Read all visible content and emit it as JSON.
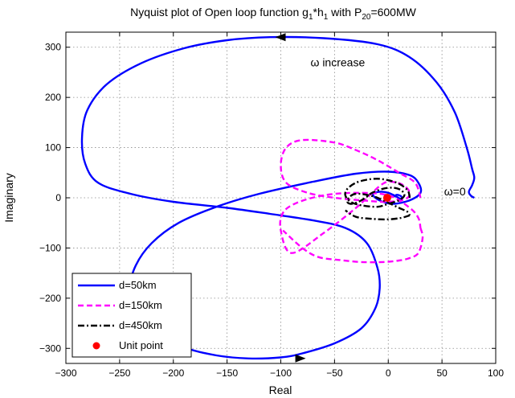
{
  "chart_data": {
    "type": "line",
    "title_main": "Nyquist plot of Open loop function g",
    "title_sub1": "1",
    "title_mid": "*h",
    "title_sub2": "1",
    "title_with": " with P",
    "title_sub3": "20",
    "title_end": "=600MW",
    "xlabel": "Real",
    "ylabel": "Imaginary",
    "xlim": [
      -300,
      100
    ],
    "ylim": [
      -330,
      330
    ],
    "xticks": [
      -300,
      -250,
      -200,
      -150,
      -100,
      -50,
      0,
      50,
      100
    ],
    "yticks": [
      -300,
      -200,
      -100,
      0,
      100,
      200,
      300
    ],
    "grid": true,
    "legend_position": "bottom-left",
    "annotations": [
      {
        "text": "ω increase",
        "x": -47,
        "y": 262
      },
      {
        "text": "ω=0",
        "x": 62,
        "y": 5
      }
    ],
    "series": [
      {
        "name": "d=50km",
        "color": "#0000ff",
        "style": "solid",
        "arrows": true,
        "x": [
          80,
          77,
          75,
          78,
          80,
          78,
          73,
          62,
          45,
          20,
          -10,
          -60,
          -110,
          -150,
          -190,
          -230,
          -262,
          -280,
          -285,
          -282,
          -270,
          -240,
          -200,
          -150,
          -110,
          -70,
          -40,
          -20,
          -10,
          -8,
          -12,
          -25,
          -50,
          -80,
          -100,
          -130,
          -160,
          -190,
          -215,
          -232,
          -240,
          -235,
          -220,
          -195,
          -160,
          -120,
          -70,
          -30,
          0,
          20,
          28,
          30,
          20,
          5,
          -5,
          -12,
          -14,
          -8,
          0,
          8,
          12,
          12,
          8,
          5
        ],
        "y": [
          0,
          4,
          12,
          25,
          40,
          58,
          100,
          170,
          230,
          280,
          306,
          318,
          320,
          314,
          298,
          268,
          226,
          175,
          120,
          68,
          30,
          8,
          -8,
          -20,
          -32,
          -45,
          -60,
          -90,
          -140,
          -180,
          -220,
          -260,
          -290,
          -310,
          -318,
          -320,
          -314,
          -298,
          -270,
          -230,
          -180,
          -135,
          -90,
          -50,
          -18,
          8,
          32,
          48,
          52,
          45,
          30,
          10,
          -5,
          -12,
          -8,
          0,
          8,
          12,
          10,
          2,
          -3,
          3,
          6,
          2
        ]
      },
      {
        "name": "d=150km",
        "color": "#ff00ff",
        "style": "dashed",
        "x": [
          30,
          25,
          10,
          -10,
          -30,
          -50,
          -80,
          -95,
          -100,
          -95,
          -75,
          -50,
          -25,
          -5,
          10,
          18,
          20,
          16,
          8,
          -5,
          -30,
          -60,
          -90,
          -100,
          -98,
          -85,
          -60,
          -30,
          0,
          20,
          28,
          30
        ],
        "y": [
          0,
          30,
          50,
          75,
          95,
          110,
          115,
          100,
          65,
          30,
          10,
          0,
          -5,
          -8,
          -6,
          0,
          10,
          22,
          30,
          28,
          -20,
          -70,
          -110,
          -65,
          -30,
          -10,
          5,
          10,
          5,
          -20,
          -40,
          -60
        ],
        "x2": [
          30,
          32,
          28,
          20,
          10,
          -5,
          -25,
          -45,
          -65,
          -80,
          -98
        ],
        "y2": [
          -60,
          -80,
          -110,
          -120,
          -125,
          -128,
          -128,
          -124,
          -118,
          -100,
          -65
        ]
      },
      {
        "name": "d=450km",
        "color": "#000000",
        "style": "dashdot",
        "x": [
          20,
          18,
          10,
          0,
          -10,
          -20,
          -30,
          -38,
          -40,
          -35,
          -25,
          -10,
          0,
          10,
          15,
          12,
          5,
          -5,
          -15,
          -20,
          -25,
          -30,
          -35,
          -38,
          -36,
          -30,
          -20,
          -10,
          0,
          10,
          18,
          20
        ],
        "y": [
          0,
          15,
          28,
          35,
          38,
          36,
          30,
          18,
          5,
          -8,
          -15,
          -18,
          -12,
          -5,
          5,
          15,
          20,
          18,
          10,
          2,
          -5,
          -10,
          -12,
          -8,
          2,
          8,
          6,
          0,
          -10,
          -20,
          -28,
          -35
        ],
        "x2": [
          20,
          12,
          0,
          -15,
          -30,
          -40
        ],
        "y2": [
          -35,
          -40,
          -43,
          -42,
          -38,
          -25
        ]
      },
      {
        "name": "Unit point",
        "color": "#ff0000",
        "style": "marker",
        "x": [
          -1
        ],
        "y": [
          0
        ]
      }
    ]
  }
}
